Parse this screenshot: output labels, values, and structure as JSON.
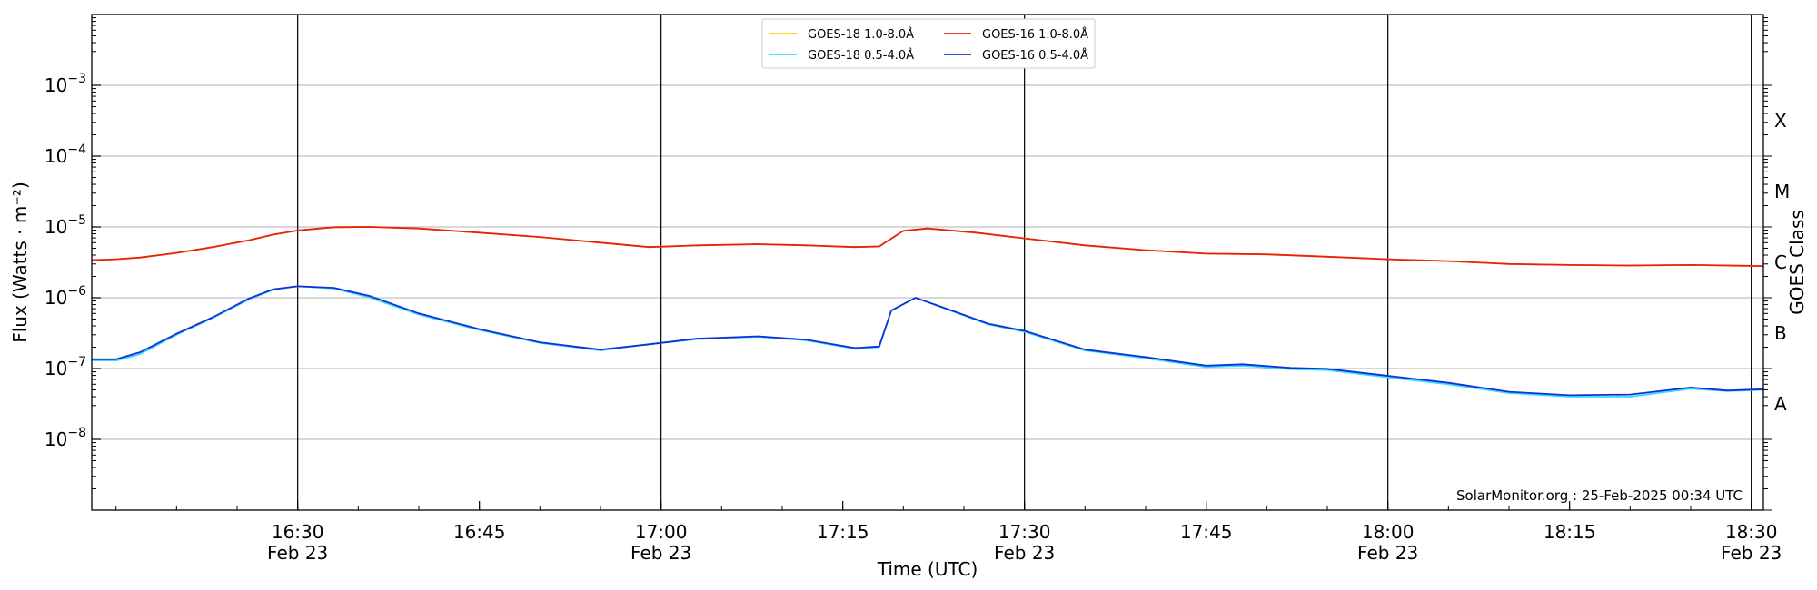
{
  "chart_data": {
    "type": "line",
    "xlabel": "Time (UTC)",
    "ylabel_left": "Flux (Watts · m⁻²)",
    "ylabel_right": "GOES Class",
    "xlim": [
      "16:13",
      "18:31"
    ],
    "ylim": [
      1e-09,
      0.01
    ],
    "y_scale": "log",
    "grid": "horizontal",
    "legend_position": "top-center",
    "annotation": "SolarMonitor.org : 25-Feb-2025 00:34 UTC",
    "x_ticks": [
      {
        "time": "16:30",
        "label": "16:30",
        "date": "Feb 23"
      },
      {
        "time": "16:45",
        "label": "16:45",
        "date": ""
      },
      {
        "time": "17:00",
        "label": "17:00",
        "date": "Feb 23"
      },
      {
        "time": "17:15",
        "label": "17:15",
        "date": ""
      },
      {
        "time": "17:30",
        "label": "17:30",
        "date": "Feb 23"
      },
      {
        "time": "17:45",
        "label": "17:45",
        "date": ""
      },
      {
        "time": "18:00",
        "label": "18:00",
        "date": "Feb 23"
      },
      {
        "time": "18:15",
        "label": "18:15",
        "date": ""
      },
      {
        "time": "18:30",
        "label": "18:30",
        "date": "Feb 23"
      }
    ],
    "vertical_lines": [
      "16:30",
      "17:00",
      "17:30",
      "18:00",
      "18:30"
    ],
    "y_ticks": [
      {
        "value": 1e-08,
        "label": "10",
        "exp": "−8"
      },
      {
        "value": 1e-07,
        "label": "10",
        "exp": "−7"
      },
      {
        "value": 1e-06,
        "label": "10",
        "exp": "−6"
      },
      {
        "value": 1e-05,
        "label": "10",
        "exp": "−5"
      },
      {
        "value": 0.0001,
        "label": "10",
        "exp": "−4"
      },
      {
        "value": 0.001,
        "label": "10",
        "exp": "−3"
      }
    ],
    "goes_classes": [
      {
        "label": "A",
        "value": 3.16e-08
      },
      {
        "label": "B",
        "value": 3.16e-07
      },
      {
        "label": "C",
        "value": 3.16e-06
      },
      {
        "label": "M",
        "value": 3.16e-05
      },
      {
        "label": "X",
        "value": 0.000316
      }
    ],
    "series": [
      {
        "name": "GOES-18 1.0-8.0Å",
        "color": "#ffcc00",
        "x": [
          "16:13",
          "16:15",
          "16:17",
          "16:20",
          "16:23",
          "16:26",
          "16:28",
          "16:30",
          "16:33",
          "16:36",
          "16:40",
          "16:45",
          "16:50",
          "16:55",
          "16:59",
          "17:03",
          "17:08",
          "17:12",
          "17:16",
          "17:18",
          "17:20",
          "17:22",
          "17:26",
          "17:30",
          "17:35",
          "17:40",
          "17:45",
          "17:50",
          "17:55",
          "18:00",
          "18:05",
          "18:10",
          "18:15",
          "18:20",
          "18:25",
          "18:28",
          "18:31"
        ],
        "values": [
          3.4e-06,
          3.5e-06,
          3.7e-06,
          4.3e-06,
          5.2e-06,
          6.5e-06,
          7.8e-06,
          8.9e-06,
          9.9e-06,
          1e-05,
          9.5e-06,
          8.3e-06,
          7.2e-06,
          6e-06,
          5.2e-06,
          5.5e-06,
          5.7e-06,
          5.5e-06,
          5.2e-06,
          5.3e-06,
          8.8e-06,
          9.5e-06,
          8.3e-06,
          6.9e-06,
          5.5e-06,
          4.7e-06,
          4.2e-06,
          4.1e-06,
          3.8e-06,
          3.5e-06,
          3.3e-06,
          3e-06,
          2.9e-06,
          2.85e-06,
          2.9e-06,
          2.85e-06,
          2.8e-06
        ]
      },
      {
        "name": "GOES-18 0.5-4.0Å",
        "color": "#33ddff",
        "x": [
          "16:13",
          "16:15",
          "16:17",
          "16:20",
          "16:23",
          "16:26",
          "16:28",
          "16:30",
          "16:33",
          "16:36",
          "16:40",
          "16:45",
          "16:50",
          "16:55",
          "16:59",
          "17:03",
          "17:08",
          "17:12",
          "17:16",
          "17:18",
          "17:19",
          "17:21",
          "17:24",
          "17:27",
          "17:30",
          "17:35",
          "17:40",
          "17:45",
          "17:48",
          "17:52",
          "17:55",
          "18:00",
          "18:05",
          "18:10",
          "18:15",
          "18:20",
          "18:25",
          "18:28",
          "18:31"
        ],
        "values": [
          1.3e-07,
          1.3e-07,
          1.6e-07,
          3e-07,
          5.2e-07,
          9.5e-07,
          1.3e-06,
          1.45e-06,
          1.35e-06,
          1e-06,
          5.8e-07,
          3.5e-07,
          2.3e-07,
          1.8e-07,
          2.2e-07,
          2.6e-07,
          2.8e-07,
          2.5e-07,
          1.9e-07,
          2e-07,
          6.5e-07,
          1e-06,
          6.5e-07,
          4.2e-07,
          3.3e-07,
          1.8e-07,
          1.4e-07,
          1.05e-07,
          1.1e-07,
          9.8e-08,
          9.5e-08,
          7.5e-08,
          6e-08,
          4.5e-08,
          4e-08,
          4e-08,
          5.2e-08,
          4.8e-08,
          5e-08
        ]
      },
      {
        "name": "GOES-16 1.0-8.0Å",
        "color": "#e8210e",
        "x": [
          "16:13",
          "16:15",
          "16:17",
          "16:20",
          "16:23",
          "16:26",
          "16:28",
          "16:30",
          "16:33",
          "16:36",
          "16:40",
          "16:45",
          "16:50",
          "16:55",
          "16:59",
          "17:03",
          "17:08",
          "17:12",
          "17:16",
          "17:18",
          "17:20",
          "17:22",
          "17:26",
          "17:30",
          "17:35",
          "17:40",
          "17:45",
          "17:50",
          "17:55",
          "18:00",
          "18:05",
          "18:10",
          "18:15",
          "18:20",
          "18:25",
          "18:28",
          "18:31"
        ],
        "values": [
          3.4e-06,
          3.5e-06,
          3.7e-06,
          4.3e-06,
          5.2e-06,
          6.5e-06,
          7.8e-06,
          8.9e-06,
          9.9e-06,
          1e-05,
          9.5e-06,
          8.3e-06,
          7.2e-06,
          6e-06,
          5.2e-06,
          5.5e-06,
          5.7e-06,
          5.5e-06,
          5.2e-06,
          5.3e-06,
          8.8e-06,
          9.5e-06,
          8.3e-06,
          6.9e-06,
          5.5e-06,
          4.7e-06,
          4.2e-06,
          4.1e-06,
          3.8e-06,
          3.5e-06,
          3.3e-06,
          3e-06,
          2.9e-06,
          2.85e-06,
          2.9e-06,
          2.85e-06,
          2.8e-06
        ]
      },
      {
        "name": "GOES-16 0.5-4.0Å",
        "color": "#1230d6",
        "x": [
          "16:13",
          "16:15",
          "16:17",
          "16:20",
          "16:23",
          "16:26",
          "16:28",
          "16:30",
          "16:33",
          "16:36",
          "16:40",
          "16:45",
          "16:50",
          "16:55",
          "16:59",
          "17:03",
          "17:08",
          "17:12",
          "17:16",
          "17:18",
          "17:19",
          "17:21",
          "17:24",
          "17:27",
          "17:30",
          "17:35",
          "17:40",
          "17:45",
          "17:48",
          "17:52",
          "17:55",
          "18:00",
          "18:05",
          "18:10",
          "18:15",
          "18:20",
          "18:25",
          "18:28",
          "18:31"
        ],
        "values": [
          1.35e-07,
          1.35e-07,
          1.7e-07,
          3.1e-07,
          5.3e-07,
          9.8e-07,
          1.32e-06,
          1.45e-06,
          1.38e-06,
          1.05e-06,
          6e-07,
          3.6e-07,
          2.35e-07,
          1.85e-07,
          2.2e-07,
          2.65e-07,
          2.85e-07,
          2.55e-07,
          1.95e-07,
          2.05e-07,
          6.6e-07,
          1e-06,
          6.6e-07,
          4.3e-07,
          3.4e-07,
          1.85e-07,
          1.45e-07,
          1.1e-07,
          1.15e-07,
          1.02e-07,
          9.9e-08,
          7.9e-08,
          6.3e-08,
          4.7e-08,
          4.2e-08,
          4.3e-08,
          5.4e-08,
          4.9e-08,
          5.1e-08
        ]
      }
    ],
    "legend_order": [
      0,
      1,
      2,
      3
    ]
  }
}
